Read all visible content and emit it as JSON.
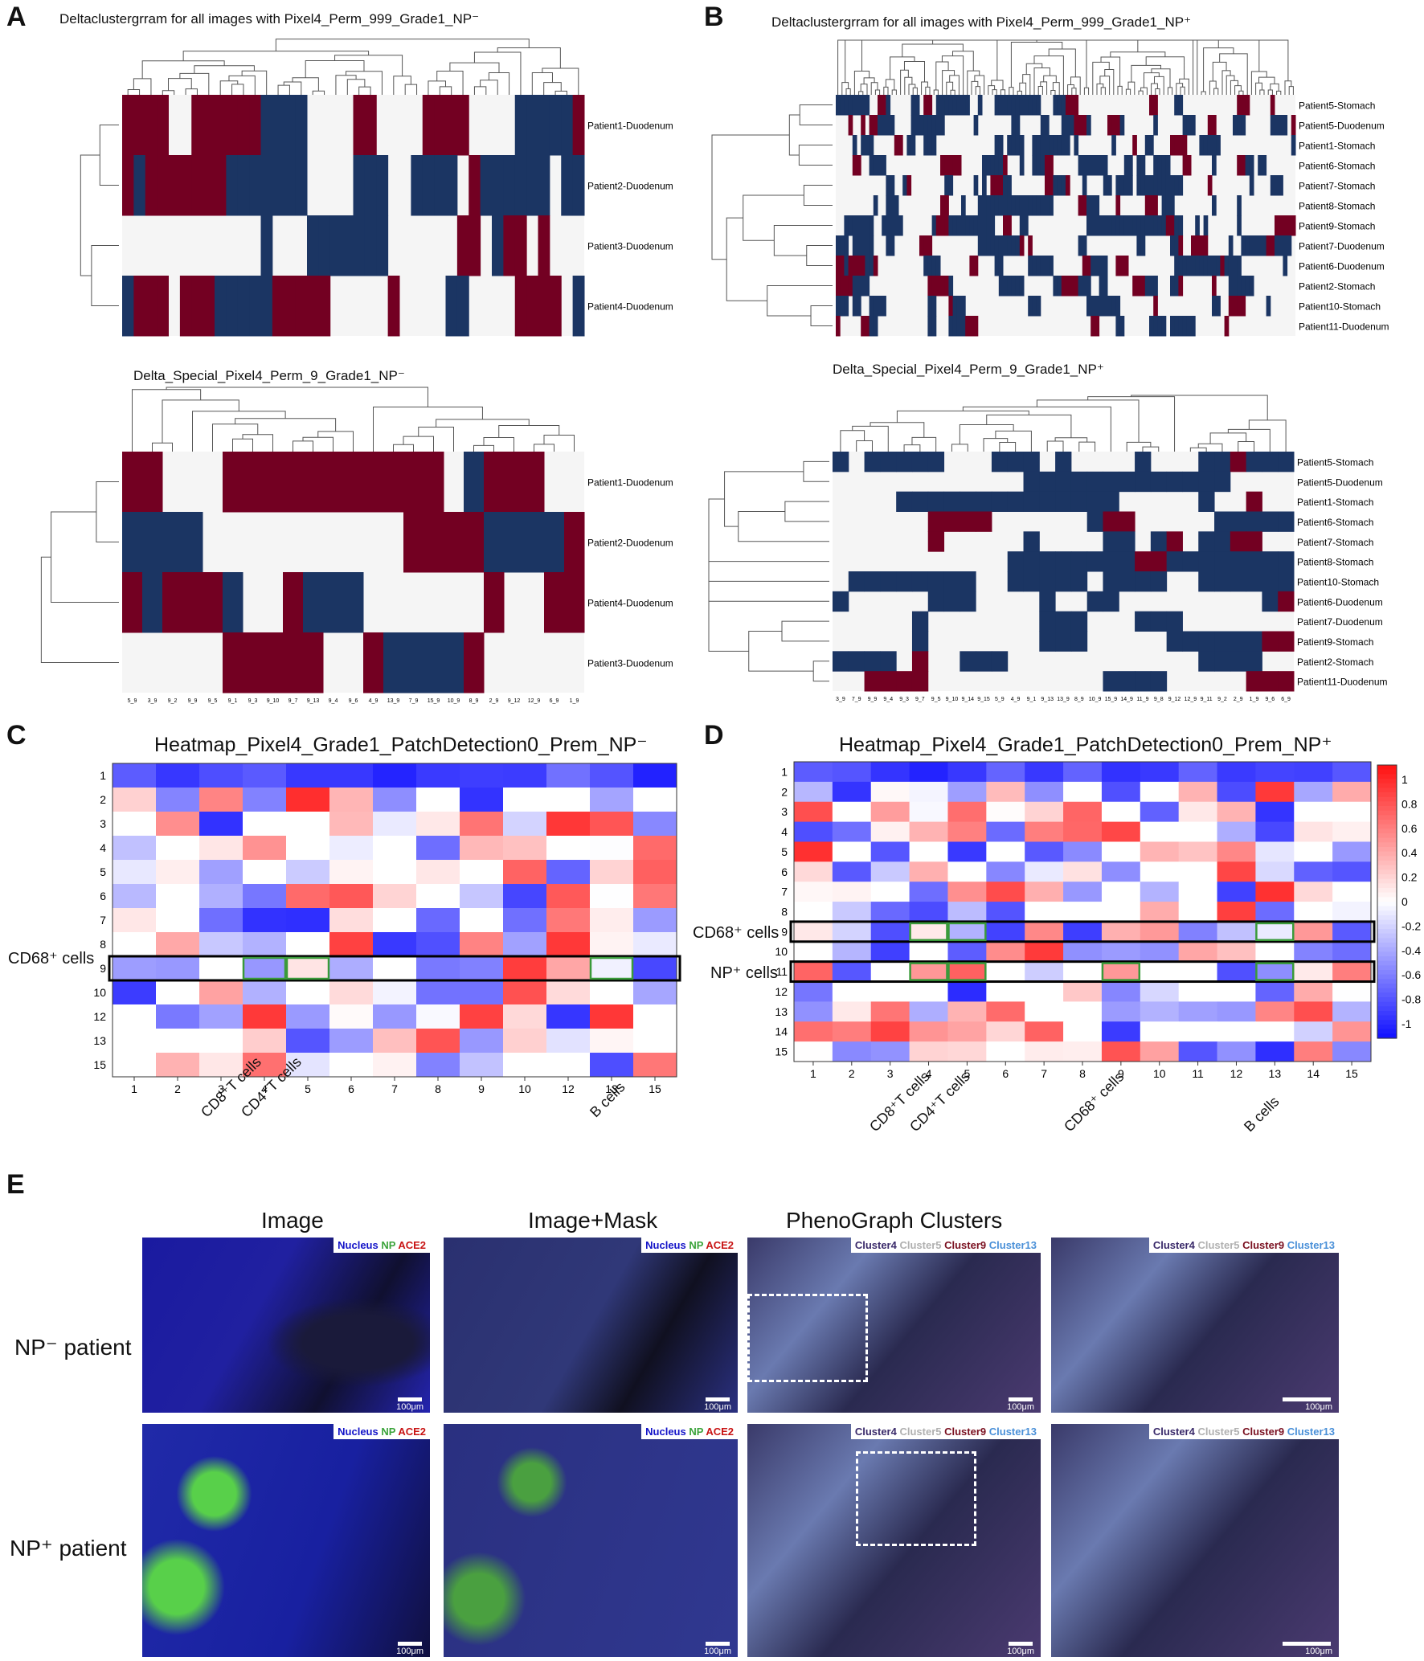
{
  "panels": {
    "A": "A",
    "B": "B",
    "C": "C",
    "D": "D",
    "E": "E"
  },
  "colors": {
    "red": "#730022",
    "blue": "#1b3563",
    "empty": "#f5f5f5"
  },
  "A1": {
    "title": "Deltaclustergrram for all images with Pixel4_Perm_999_Grade1_NP⁻",
    "rows": [
      "Patient1-Duodenum",
      "Patient2-Duodenum",
      "Patient3-Duodenum",
      "Patient4-Duodenum"
    ]
  },
  "A2": {
    "title": "Delta_Special_Pixel4_Perm_9_Grade1_NP⁻",
    "rows": [
      "Patient1-Duodenum",
      "Patient2-Duodenum",
      "Patient4-Duodenum",
      "Patient3-Duodenum"
    ],
    "cols": [
      "5_9",
      "3_9",
      "9_2",
      "9_9",
      "9_5",
      "9_1",
      "9_3",
      "9_10",
      "9_7",
      "9_13",
      "9_4",
      "9_6",
      "4_9",
      "13_9",
      "7_9",
      "15_9",
      "10_9",
      "8_9",
      "2_9",
      "9_12",
      "12_9",
      "6_9",
      "1_9"
    ]
  },
  "B1": {
    "title": "Deltaclustergrram for all images with Pixel4_Perm_999_Grade1_NP⁺",
    "rows": [
      "Patient5-Stomach",
      "Patient5-Duodenum",
      "Patient1-Stomach",
      "Patient6-Stomach",
      "Patient7-Stomach",
      "Patient8-Stomach",
      "Patient9-Stomach",
      "Patient7-Duodenum",
      "Patient6-Duodenum",
      "Patient2-Stomach",
      "Patient10-Stomach",
      "Patient11-Duodenum"
    ]
  },
  "B2": {
    "title": "Delta_Special_Pixel4_Perm_9_Grade1_NP⁺",
    "rows": [
      "Patient5-Stomach",
      "Patient5-Duodenum",
      "Patient1-Stomach",
      "Patient6-Stomach",
      "Patient7-Stomach",
      "Patient8-Stomach",
      "Patient10-Stomach",
      "Patient6-Duodenum",
      "Patient7-Duodenum",
      "Patient9-Stomach",
      "Patient2-Stomach",
      "Patient11-Duodenum"
    ],
    "cols": [
      "3_9",
      "7_9",
      "9_9",
      "9_4",
      "9_3",
      "9_7",
      "9_5",
      "9_10",
      "9_14",
      "9_15",
      "5_9",
      "4_9",
      "9_1",
      "9_13",
      "13_9",
      "8_9",
      "10_9",
      "15_9",
      "14_9",
      "11_9",
      "9_8",
      "9_12",
      "12_9",
      "9_11",
      "9_2",
      "2_9",
      "1_9",
      "9_6",
      "6_9"
    ]
  },
  "C": {
    "title": "Heatmap_Pixel4_Grade1_PatchDetection0_Prem_NP⁻",
    "rows": [
      "1",
      "2",
      "3",
      "4",
      "5",
      "6",
      "7",
      "8",
      "9",
      "10",
      "12",
      "13",
      "15"
    ],
    "cols": [
      "1",
      "2",
      "3",
      "4",
      "5",
      "6",
      "7",
      "8",
      "9",
      "10",
      "12",
      "13",
      "15"
    ],
    "highlight_label": "CD68⁺ cells",
    "col_labels": [
      "CD8⁺T cells",
      "CD4⁺T cells",
      "B cells"
    ]
  },
  "D": {
    "title": "Heatmap_Pixel4_Grade1_PatchDetection0_Prem_NP⁺",
    "rows": [
      "1",
      "2",
      "3",
      "4",
      "5",
      "6",
      "7",
      "8",
      "9",
      "10",
      "11",
      "12",
      "13",
      "14",
      "15"
    ],
    "cols": [
      "1",
      "2",
      "3",
      "4",
      "5",
      "6",
      "7",
      "8",
      "9",
      "10",
      "11",
      "12",
      "13",
      "14",
      "15"
    ],
    "highlight_labels": [
      "CD68⁺ cells",
      "NP⁺ cells"
    ],
    "col_labels": [
      "CD8⁺T cells",
      "CD4⁺T cells",
      "CD68⁺ cells",
      "B cells"
    ],
    "colorbar_ticks": [
      "1",
      "0.8",
      "0.6",
      "0.4",
      "0.2",
      "0",
      "-0.2",
      "-0.4",
      "-0.6",
      "-0.8",
      "-1"
    ]
  },
  "E": {
    "col_titles": [
      "Image",
      "Image+Mask",
      "PhenoGraph Clusters"
    ],
    "row_labels": [
      "NP⁻ patient",
      "NP⁺ patient"
    ],
    "legend_stain": [
      "Nucleus",
      "NP",
      "ACE2"
    ],
    "legend_clusters": [
      "Cluster4",
      "Cluster5",
      "Cluster9",
      "Cluster13"
    ],
    "scale": "100μm"
  }
}
